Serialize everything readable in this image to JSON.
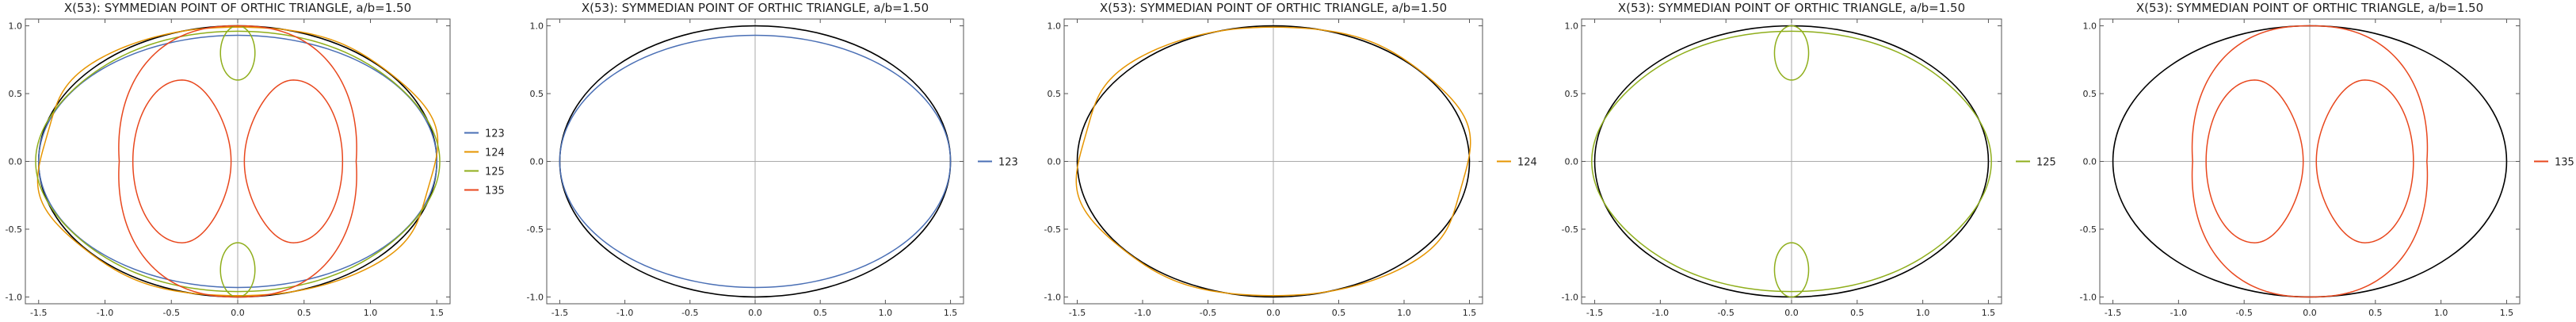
{
  "chart_data": [
    {
      "type": "line",
      "title": "X(53): SYMMEDIAN POINT OF ORTHIC TRIANGLE, a/b=1.50",
      "xlim": [
        -1.6,
        1.6
      ],
      "ylim": [
        -1.05,
        1.05
      ],
      "xticks": [
        "-1.5",
        "-1.0",
        "-0.5",
        "0.0",
        "0.5",
        "1.0",
        "1.5"
      ],
      "yticks": [
        "-1.0",
        "-0.5",
        "0.0",
        "0.5",
        "1.0"
      ],
      "grid": false,
      "legend": "right",
      "reference_ellipse": {
        "a": 1.5,
        "b": 1.0,
        "color": "#000000"
      },
      "series": [
        {
          "name": "123",
          "color": "#4a6fb5",
          "curve": "ellipse",
          "a": 1.5,
          "b": 0.93
        },
        {
          "name": "124",
          "color": "#e69500",
          "curve": "wavy-ellipse",
          "a": 1.52,
          "b": 1.0
        },
        {
          "name": "125",
          "color": "#8fae1b",
          "curve": "ellipse-with-lobes",
          "a": 1.5,
          "b": 0.96,
          "lobe_center": 0.8,
          "lobe_rx": 0.13,
          "lobe_ry": 0.2
        },
        {
          "name": "135",
          "color": "#e8471d",
          "curve": "peanut",
          "a": 0.97,
          "b": 1.0,
          "inner_center": 0.42,
          "inner_rx": 0.37,
          "inner_ry": 0.6
        }
      ]
    },
    {
      "type": "line",
      "title": "X(53): SYMMEDIAN POINT OF ORTHIC TRIANGLE, a/b=1.50",
      "xlim": [
        -1.6,
        1.6
      ],
      "ylim": [
        -1.05,
        1.05
      ],
      "xticks": [
        "-1.5",
        "-1.0",
        "-0.5",
        "0.0",
        "0.5",
        "1.0",
        "1.5"
      ],
      "yticks": [
        "-1.0",
        "-0.5",
        "0.0",
        "0.5",
        "1.0"
      ],
      "grid": false,
      "legend": "right",
      "reference_ellipse": {
        "a": 1.5,
        "b": 1.0,
        "color": "#000000"
      },
      "series": [
        {
          "name": "123",
          "color": "#4a6fb5",
          "curve": "ellipse",
          "a": 1.5,
          "b": 0.93
        }
      ]
    },
    {
      "type": "line",
      "title": "X(53): SYMMEDIAN POINT OF ORTHIC TRIANGLE, a/b=1.50",
      "xlim": [
        -1.6,
        1.6
      ],
      "ylim": [
        -1.05,
        1.05
      ],
      "xticks": [
        "-1.5",
        "-1.0",
        "-0.5",
        "0.0",
        "0.5",
        "1.0",
        "1.5"
      ],
      "yticks": [
        "-1.0",
        "-0.5",
        "0.0",
        "0.5",
        "1.0"
      ],
      "grid": false,
      "legend": "right",
      "reference_ellipse": {
        "a": 1.5,
        "b": 1.0,
        "color": "#000000"
      },
      "series": [
        {
          "name": "124",
          "color": "#e69500",
          "curve": "wavy-ellipse",
          "a": 1.52,
          "b": 1.0
        }
      ]
    },
    {
      "type": "line",
      "title": "X(53): SYMMEDIAN POINT OF ORTHIC TRIANGLE, a/b=1.50",
      "xlim": [
        -1.6,
        1.6
      ],
      "ylim": [
        -1.05,
        1.05
      ],
      "xticks": [
        "-1.5",
        "-1.0",
        "-0.5",
        "0.0",
        "0.5",
        "1.0",
        "1.5"
      ],
      "yticks": [
        "-1.0",
        "-0.5",
        "0.0",
        "0.5",
        "1.0"
      ],
      "grid": false,
      "legend": "right",
      "reference_ellipse": {
        "a": 1.5,
        "b": 1.0,
        "color": "#000000"
      },
      "series": [
        {
          "name": "125",
          "color": "#8fae1b",
          "curve": "ellipse-with-lobes",
          "a": 1.5,
          "b": 0.96,
          "lobe_center": 0.8,
          "lobe_rx": 0.13,
          "lobe_ry": 0.2
        }
      ]
    },
    {
      "type": "line",
      "title": "X(53): SYMMEDIAN POINT OF ORTHIC TRIANGLE, a/b=1.50",
      "xlim": [
        -1.6,
        1.6
      ],
      "ylim": [
        -1.05,
        1.05
      ],
      "xticks": [
        "-1.5",
        "-1.0",
        "-0.5",
        "0.0",
        "0.5",
        "1.0",
        "1.5"
      ],
      "yticks": [
        "-1.0",
        "-0.5",
        "0.0",
        "0.5",
        "1.0"
      ],
      "grid": false,
      "legend": "right",
      "reference_ellipse": {
        "a": 1.5,
        "b": 1.0,
        "color": "#000000"
      },
      "series": [
        {
          "name": "135",
          "color": "#e8471d",
          "curve": "peanut",
          "a": 0.97,
          "b": 1.0,
          "inner_center": 0.42,
          "inner_rx": 0.37,
          "inner_ry": 0.6
        }
      ]
    }
  ]
}
